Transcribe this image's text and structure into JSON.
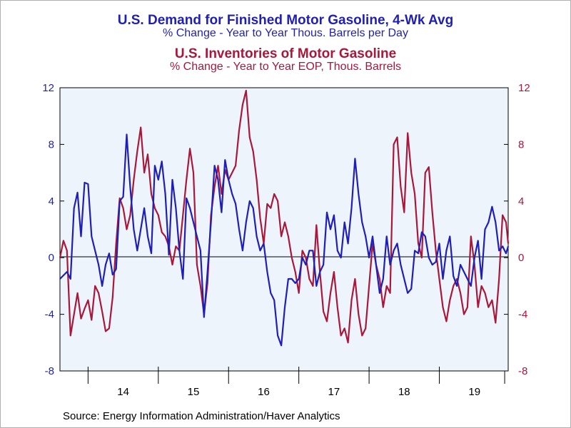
{
  "titles": {
    "title1": "U.S. Demand for Finished Motor Gasoline, 4-Wk Avg",
    "sub1": "% Change - Year to Year     Thous. Barrels per Day",
    "title2": "U.S. Inventories of Motor Gasoline",
    "sub2": "% Change - Year to Year     EOP, Thous. Barrels"
  },
  "source": "Source:  Energy Information Administration/Haver Analytics",
  "colors": {
    "demand": "#1f1fb4",
    "inventories": "#a8183a",
    "plot_bg": "#eef4fc",
    "axis": "#000000"
  },
  "chart_data": {
    "type": "line",
    "title": "U.S. Demand for Finished Motor Gasoline, 4-Wk Avg / U.S. Inventories of Motor Gasoline",
    "xlabel": "",
    "ylabel": "",
    "xlim": [
      2013.6,
      2019.98
    ],
    "ylim": [
      -8,
      12
    ],
    "y_ticks": [
      -8,
      -4,
      0,
      4,
      8,
      12
    ],
    "x_ticks": [
      2014,
      2015,
      2016,
      2017,
      2018,
      2019
    ],
    "x_tick_labels": [
      "14",
      "15",
      "16",
      "17",
      "18",
      "19"
    ],
    "x_tick_positions": [
      2014.5,
      2015.5,
      2016.5,
      2017.5,
      2018.5,
      2019.5
    ],
    "grid": false,
    "zero_line": true,
    "series": [
      {
        "name": "U.S. Demand for Finished Motor Gasoline, 4-Wk Avg",
        "axis": "left",
        "x": [
          2013.6,
          2013.7,
          2013.75,
          2013.8,
          2013.85,
          2013.9,
          2013.95,
          2014.0,
          2014.05,
          2014.1,
          2014.15,
          2014.2,
          2014.25,
          2014.3,
          2014.35,
          2014.4,
          2014.45,
          2014.5,
          2014.55,
          2014.6,
          2014.65,
          2014.7,
          2014.8,
          2014.85,
          2014.9,
          2014.95,
          2015.0,
          2015.05,
          2015.1,
          2015.15,
          2015.2,
          2015.25,
          2015.3,
          2015.35,
          2015.4,
          2015.45,
          2015.5,
          2015.55,
          2015.6,
          2015.65,
          2015.7,
          2015.75,
          2015.8,
          2015.85,
          2015.9,
          2015.95,
          2016.0,
          2016.05,
          2016.1,
          2016.15,
          2016.2,
          2016.25,
          2016.3,
          2016.35,
          2016.4,
          2016.45,
          2016.5,
          2016.55,
          2016.6,
          2016.65,
          2016.7,
          2016.75,
          2016.8,
          2016.85,
          2016.9,
          2016.95,
          2017.0,
          2017.05,
          2017.1,
          2017.15,
          2017.2,
          2017.25,
          2017.3,
          2017.35,
          2017.4,
          2017.45,
          2017.5,
          2017.55,
          2017.6,
          2017.65,
          2017.7,
          2017.75,
          2017.8,
          2017.85,
          2017.9,
          2017.95,
          2018.0,
          2018.05,
          2018.1,
          2018.15,
          2018.2,
          2018.25,
          2018.3,
          2018.35,
          2018.4,
          2018.45,
          2018.5,
          2018.55,
          2018.6,
          2018.65,
          2018.7,
          2018.75,
          2018.8,
          2018.85,
          2018.9,
          2018.95,
          2019.0,
          2019.05,
          2019.1,
          2019.15,
          2019.2,
          2019.25,
          2019.3,
          2019.35,
          2019.4,
          2019.45,
          2019.5,
          2019.55,
          2019.6,
          2019.65,
          2019.7,
          2019.75,
          2019.8,
          2019.85,
          2019.9,
          2019.95,
          2019.98
        ],
        "values": [
          -1.5,
          -1.0,
          -1.5,
          3.5,
          4.6,
          1.5,
          5.3,
          5.2,
          1.5,
          0.5,
          -0.5,
          -2.0,
          -0.5,
          0.3,
          -1.2,
          -0.8,
          4.0,
          4.3,
          8.7,
          5.0,
          2.0,
          0.5,
          3.5,
          1.5,
          0.3,
          6.5,
          5.5,
          6.8,
          4.5,
          0.2,
          5.5,
          3.5,
          0.5,
          -1.5,
          4.2,
          3.5,
          2.5,
          1.5,
          0.5,
          -4.2,
          -1.0,
          2.5,
          6.5,
          5.5,
          3.2,
          6.9,
          5.5,
          4.5,
          3.8,
          2.0,
          0.5,
          2.5,
          4.0,
          3.5,
          1.5,
          0.5,
          1.0,
          -1.0,
          -2.5,
          -3.0,
          -5.5,
          -6.2,
          -3.5,
          -1.5,
          -1.5,
          -1.8,
          -1.5,
          0.0,
          -0.5,
          0.5,
          0.5,
          -2.0,
          -1.0,
          -0.5,
          3.2,
          2.0,
          3.0,
          0.5,
          0.0,
          2.5,
          1.0,
          3.5,
          7.0,
          4.5,
          2.5,
          1.5,
          0.0,
          1.5,
          -0.5,
          -2.5,
          -1.5,
          1.5,
          -0.5,
          0.5,
          1.0,
          -0.5,
          -1.5,
          -2.5,
          -2.2,
          0.5,
          0.3,
          1.8,
          1.5,
          0.0,
          -0.5,
          -0.3,
          1.0,
          -1.5,
          0.5,
          1.5,
          -1.3,
          -2.0,
          -0.5,
          -1.0,
          -1.5,
          -2.0,
          0.0,
          1.2,
          -1.5,
          2.0,
          2.5,
          3.6,
          2.5,
          0.5,
          0.8,
          0.3,
          0.8
        ]
      },
      {
        "name": "U.S. Inventories of Motor Gasoline",
        "axis": "right",
        "x": [
          2013.6,
          2013.65,
          2013.7,
          2013.75,
          2013.8,
          2013.85,
          2013.9,
          2013.95,
          2014.0,
          2014.05,
          2014.1,
          2014.15,
          2014.2,
          2014.25,
          2014.3,
          2014.35,
          2014.4,
          2014.45,
          2014.5,
          2014.55,
          2014.6,
          2014.65,
          2014.7,
          2014.75,
          2014.8,
          2014.85,
          2014.9,
          2014.95,
          2015.0,
          2015.05,
          2015.1,
          2015.15,
          2015.2,
          2015.25,
          2015.3,
          2015.35,
          2015.4,
          2015.45,
          2015.5,
          2015.55,
          2015.6,
          2015.65,
          2015.7,
          2015.75,
          2015.8,
          2015.85,
          2015.9,
          2015.95,
          2016.0,
          2016.05,
          2016.1,
          2016.15,
          2016.2,
          2016.25,
          2016.3,
          2016.35,
          2016.4,
          2016.45,
          2016.5,
          2016.55,
          2016.6,
          2016.65,
          2016.7,
          2016.75,
          2016.8,
          2016.85,
          2016.9,
          2016.95,
          2017.0,
          2017.05,
          2017.1,
          2017.15,
          2017.2,
          2017.25,
          2017.3,
          2017.35,
          2017.4,
          2017.45,
          2017.5,
          2017.55,
          2017.6,
          2017.65,
          2017.7,
          2017.75,
          2017.8,
          2017.85,
          2017.9,
          2017.95,
          2018.0,
          2018.05,
          2018.1,
          2018.15,
          2018.2,
          2018.25,
          2018.3,
          2018.35,
          2018.4,
          2018.45,
          2018.5,
          2018.55,
          2018.6,
          2018.65,
          2018.7,
          2018.75,
          2018.8,
          2018.85,
          2018.9,
          2018.95,
          2019.0,
          2019.05,
          2019.1,
          2019.15,
          2019.2,
          2019.25,
          2019.3,
          2019.35,
          2019.4,
          2019.45,
          2019.5,
          2019.55,
          2019.6,
          2019.65,
          2019.7,
          2019.75,
          2019.8,
          2019.85,
          2019.9,
          2019.95,
          2019.98
        ],
        "values": [
          0.0,
          1.2,
          0.5,
          -5.5,
          -4.0,
          -2.5,
          -4.3,
          -3.6,
          -3.0,
          -4.4,
          -2.0,
          -2.5,
          -3.8,
          -5.2,
          -5.0,
          -2.8,
          1.0,
          4.2,
          3.5,
          2.0,
          3.0,
          5.5,
          7.5,
          9.2,
          6.0,
          7.3,
          4.5,
          3.5,
          3.0,
          1.8,
          1.5,
          0.8,
          -0.5,
          0.8,
          0.5,
          3.0,
          5.5,
          7.7,
          6.0,
          -0.5,
          -2.0,
          -4.0,
          -1.8,
          3.0,
          5.0,
          6.5,
          4.5,
          6.2,
          5.5,
          6.0,
          6.5,
          9.0,
          10.8,
          11.8,
          8.5,
          7.5,
          5.5,
          2.8,
          1.0,
          3.8,
          3.5,
          4.5,
          4.0,
          1.5,
          2.5,
          1.5,
          0.0,
          -1.0,
          -2.5,
          0.5,
          0.0,
          -1.5,
          -2.0,
          2.3,
          -1.0,
          -3.8,
          -4.5,
          -2.5,
          -1.0,
          -3.5,
          -5.5,
          -5.0,
          -6.0,
          -3.0,
          -1.5,
          -4.0,
          -5.5,
          -5.0,
          -2.0,
          1.0,
          -0.5,
          -1.5,
          -3.5,
          -2.0,
          -2.5,
          8.0,
          8.5,
          5.0,
          3.2,
          8.8,
          6.0,
          4.5,
          1.0,
          0.0,
          6.0,
          6.4,
          3.2,
          0.5,
          -1.5,
          -3.5,
          -4.5,
          -3.0,
          -2.0,
          -1.5,
          -2.5,
          -4.0,
          -3.5,
          1.5,
          -0.5,
          -3.5,
          -2.0,
          -2.5,
          -3.5,
          -3.0,
          -4.6,
          -1.5,
          3.0,
          2.5,
          1.0
        ]
      }
    ]
  },
  "axes": {
    "left_tick_labels": [
      "12",
      "8",
      "4",
      "0",
      "-4",
      "-8"
    ],
    "right_tick_labels": [
      "12",
      "8",
      "4",
      "0",
      "-4",
      "-8"
    ],
    "x_tick_labels": [
      "14",
      "15",
      "16",
      "17",
      "18",
      "19"
    ]
  }
}
